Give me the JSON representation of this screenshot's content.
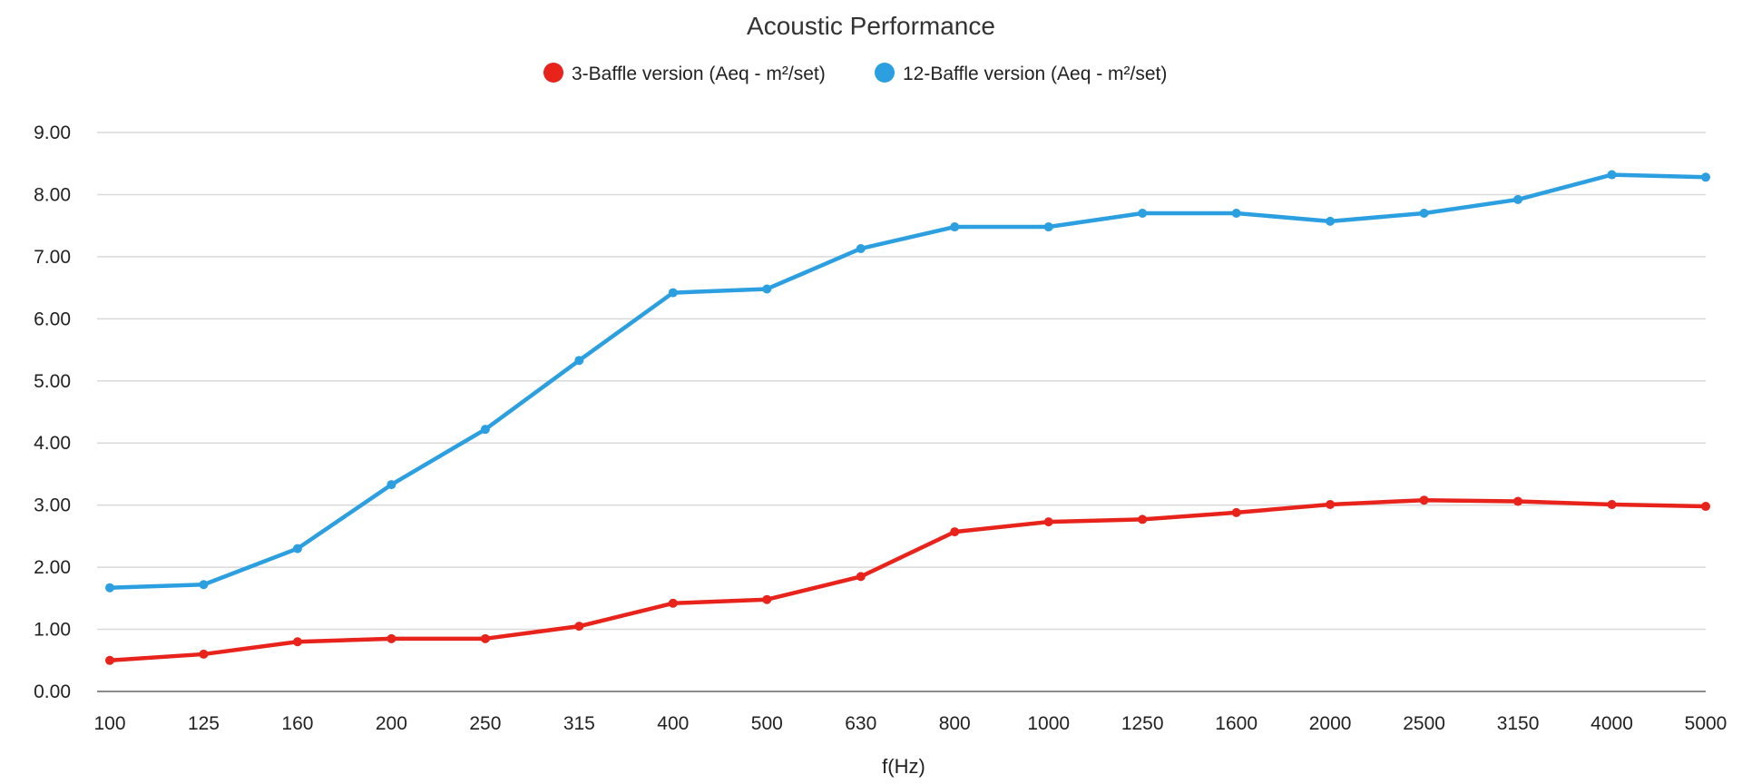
{
  "chart_data": {
    "type": "line",
    "title": "Acoustic Performance",
    "xlabel": "f(Hz)",
    "ylabel": "",
    "categories": [
      "100",
      "125",
      "160",
      "200",
      "250",
      "315",
      "400",
      "500",
      "630",
      "800",
      "1000",
      "1250",
      "1600",
      "2000",
      "2500",
      "3150",
      "4000",
      "5000"
    ],
    "ylim": [
      0,
      9
    ],
    "yticks": [
      "0.00",
      "1.00",
      "2.00",
      "3.00",
      "4.00",
      "5.00",
      "6.00",
      "7.00",
      "8.00",
      "9.00"
    ],
    "grid": true,
    "legend_position": "top-center",
    "series": [
      {
        "name": "3-Baffle version (Aeq - m²/set)",
        "color": "#e8231b",
        "values": [
          0.5,
          0.6,
          0.8,
          0.85,
          0.85,
          1.05,
          1.42,
          1.48,
          1.85,
          2.57,
          2.73,
          2.77,
          2.88,
          3.01,
          3.08,
          3.06,
          3.01,
          2.98
        ]
      },
      {
        "name": "12-Baffle version (Aeq - m²/set)",
        "color": "#2b9fe0",
        "values": [
          1.67,
          1.72,
          2.3,
          3.33,
          4.22,
          5.33,
          6.42,
          6.48,
          7.13,
          7.48,
          7.48,
          7.7,
          7.7,
          7.57,
          7.7,
          7.92,
          8.32,
          8.28
        ]
      }
    ]
  }
}
